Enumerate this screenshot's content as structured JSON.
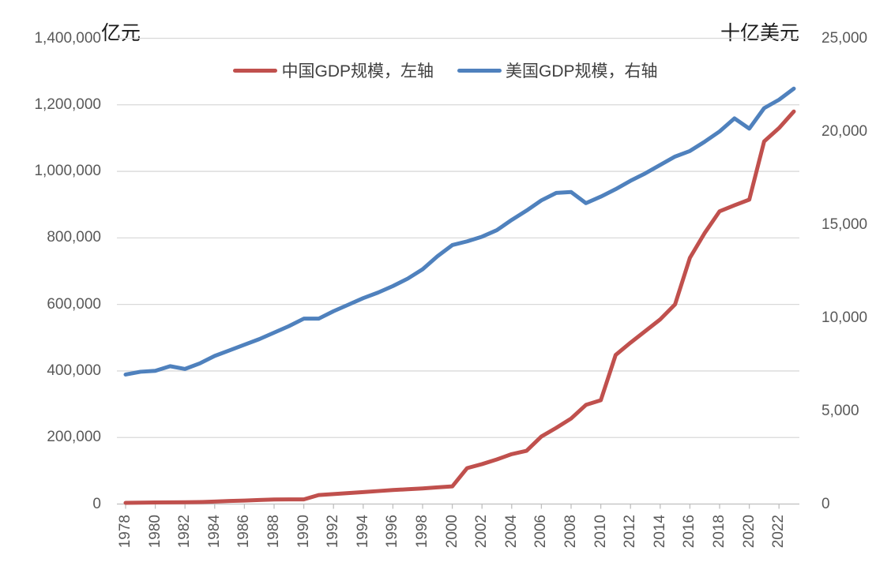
{
  "chart_data": {
    "type": "line",
    "title": "",
    "grid": true,
    "legend_position": "top",
    "left_axis": {
      "title": "亿元",
      "min": 0,
      "max": 1400000,
      "tick_step": 200000,
      "tick_labels": [
        "0",
        "200,000",
        "400,000",
        "600,000",
        "800,000",
        "1,000,000",
        "1,200,000",
        "1,400,000"
      ]
    },
    "right_axis": {
      "title": "十亿美元",
      "min": 0,
      "max": 25000,
      "tick_step": 5000,
      "tick_labels": [
        "0",
        "5,000",
        "10,000",
        "15,000",
        "20,000",
        "25,000"
      ]
    },
    "x": [
      1978,
      1979,
      1980,
      1981,
      1982,
      1983,
      1984,
      1985,
      1986,
      1987,
      1988,
      1989,
      1990,
      1991,
      1992,
      1993,
      1994,
      1995,
      1996,
      1997,
      1998,
      1999,
      2000,
      2001,
      2002,
      2003,
      2004,
      2005,
      2006,
      2007,
      2008,
      2009,
      2010,
      2011,
      2012,
      2013,
      2014,
      2015,
      2016,
      2017,
      2018,
      2019,
      2020,
      2021,
      2022,
      2023
    ],
    "x_tick_labels": [
      "1978",
      "1980",
      "1982",
      "1984",
      "1986",
      "1988",
      "1990",
      "1992",
      "1994",
      "1996",
      "1998",
      "2000",
      "2002",
      "2004",
      "2006",
      "2008",
      "2010",
      "2012",
      "2014",
      "2016",
      "2018",
      "2020",
      "2022"
    ],
    "series": [
      {
        "name": "中国GDP规模，左轴",
        "axis": "left",
        "color": "#C0504D",
        "values": [
          3700,
          4100,
          4600,
          5000,
          5400,
          6000,
          7300,
          9100,
          10400,
          12100,
          13500,
          14000,
          14000,
          27000,
          30000,
          33000,
          36000,
          39000,
          42000,
          44500,
          47000,
          50000,
          53000,
          108000,
          120000,
          134000,
          150000,
          160000,
          203000,
          229000,
          257000,
          298000,
          312000,
          448000,
          485000,
          520000,
          555000,
          600000,
          740000,
          815000,
          880000,
          898000,
          915000,
          1090000,
          1130000,
          1180000
        ]
      },
      {
        "name": "美国GDP规模，右轴",
        "axis": "right",
        "color": "#4F81BD",
        "values": [
          6950,
          7100,
          7150,
          7400,
          7250,
          7550,
          7950,
          8250,
          8550,
          8850,
          9200,
          9550,
          9950,
          9950,
          10350,
          10700,
          11050,
          11350,
          11700,
          12100,
          12600,
          13300,
          13900,
          14100,
          14350,
          14700,
          15250,
          15750,
          16300,
          16700,
          16750,
          16150,
          16500,
          16900,
          17350,
          17750,
          18200,
          18650,
          18950,
          19450,
          20000,
          20700,
          20150,
          21250,
          21700,
          22300
        ]
      }
    ]
  },
  "legend": {
    "items": [
      {
        "label": "中国GDP规模，左轴",
        "color": "#C0504D"
      },
      {
        "label": "美国GDP规模，右轴",
        "color": "#4F81BD"
      }
    ]
  },
  "colors": {
    "china_line": "#C0504D",
    "us_line": "#4F81BD",
    "gridline": "#D9D9D9",
    "axis_line": "#BFBFBF",
    "tick_text": "#595959",
    "background": "#FFFFFF"
  }
}
